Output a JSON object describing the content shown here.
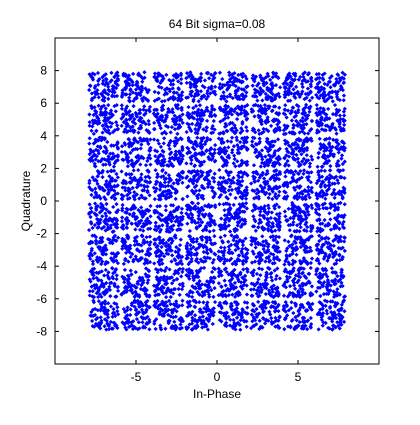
{
  "chart_data": {
    "type": "scatter",
    "title": "64 Bit sigma=0.08",
    "xlabel": "In-Phase",
    "ylabel": "Quadrature",
    "xlim": [
      -10,
      10
    ],
    "ylim": [
      -10,
      10
    ],
    "xticks": [
      -5,
      0,
      5
    ],
    "yticks": [
      -8,
      -6,
      -4,
      -2,
      0,
      2,
      4,
      6,
      8
    ],
    "grid": false,
    "legend": "none",
    "marker": "diamond",
    "series": [
      {
        "color": "#0000ff",
        "constellation": {
          "levels": [
            -7,
            -5,
            -3,
            -1,
            1,
            3,
            5,
            7
          ],
          "spread": 0.9,
          "points_per_symbol": 80
        }
      }
    ]
  }
}
